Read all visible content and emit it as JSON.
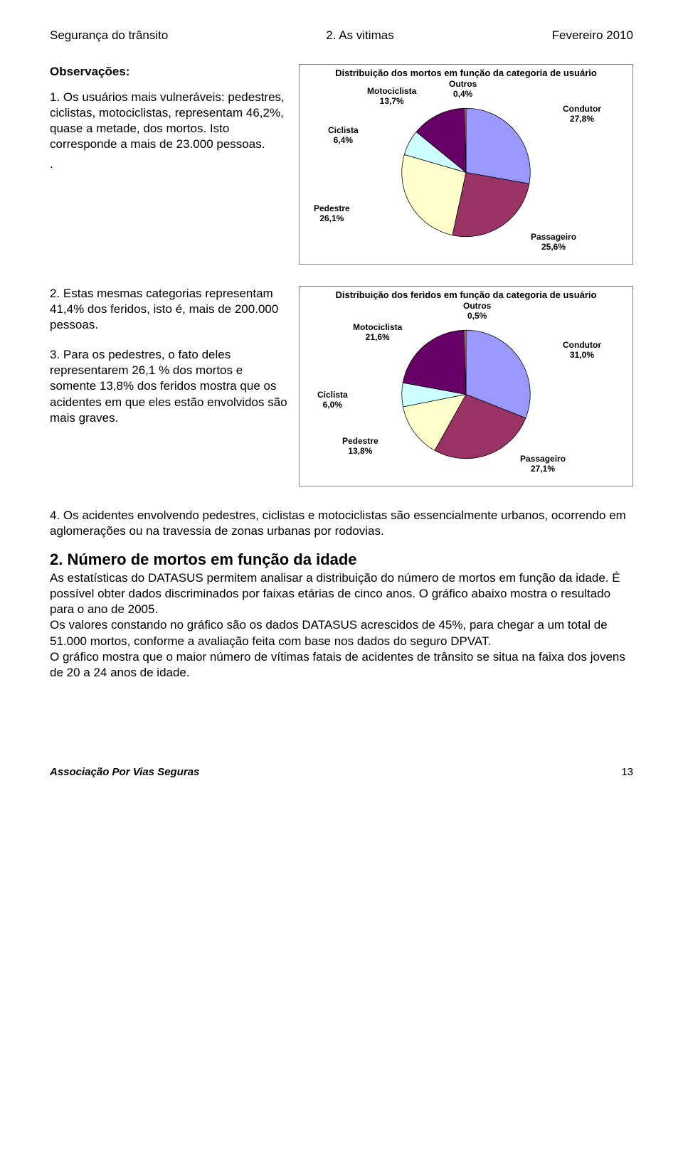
{
  "header": {
    "left": "Segurança do trânsito",
    "center": "2. As vitimas",
    "right": "Fevereiro 2010"
  },
  "obs_title": "Observações:",
  "obs1": "1. Os usuários mais vulneráveis: pedestres, ciclistas, motociclistas, representam 46,2%, quase a metade, dos mortos. Isto corresponde a mais de 23.000 pessoas.",
  "obs_dot": ".",
  "obs2": "2. Estas mesmas categorias representam 41,4% dos feridos, isto é, mais de 200.000 pessoas.",
  "obs3": "3. Para os pedestres, o fato deles representarem 26,1 % dos mortos e somente 13,8% dos feridos mostra que os acidentes em que eles estão envolvidos são mais graves.",
  "obs4": "4. Os acidentes envolvendo pedestres, ciclistas e motociclistas são essencialmente urbanos, ocorrendo em aglomerações ou na travessia de zonas urbanas por rodovias.",
  "section2_title": "2. Número de mortos em função da idade",
  "section2_body": "As estatísticas do DATASUS permitem analisar a distribuição do número de mortos em função da idade. É possível obter dados discriminados por faixas etárias de cinco anos. O gráfico abaixo mostra o resultado para o ano de 2005.\nOs valores constando no gráfico são os dados DATASUS acrescidos de 45%, para chegar a um total de 51.000 mortos, conforme a avaliação feita com base nos dados do seguro DPVAT.\nO gráfico mostra que o maior número de vítimas fatais de acidentes de trânsito se situa na faixa dos jovens de 20 a 24 anos de idade.",
  "chart1": {
    "type": "pie",
    "title": "Distribuição dos mortos em função da categoria de usuário",
    "background_color": "#ffffff",
    "border_color": "#808080",
    "slices": [
      {
        "label": "Condutor",
        "value": 27.8,
        "text": "Condutor\n27,8%",
        "color": "#9999ff"
      },
      {
        "label": "Passageiro",
        "value": 25.6,
        "text": "Passageiro\n25,6%",
        "color": "#993366"
      },
      {
        "label": "Pedestre",
        "value": 26.1,
        "text": "Pedestre\n26,1%",
        "color": "#ffffcc"
      },
      {
        "label": "Ciclista",
        "value": 6.4,
        "text": "Ciclista\n6,4%",
        "color": "#ccffff"
      },
      {
        "label": "Motociclista",
        "value": 13.7,
        "text": "Motociclista\n13,7%",
        "color": "#660066"
      },
      {
        "label": "Outros",
        "value": 0.4,
        "text": "Outros\n0,4%",
        "color": "#ff8080"
      }
    ],
    "label_fontsize": 12
  },
  "chart2": {
    "type": "pie",
    "title": "Distribuição dos feridos em função da categoria de usuário",
    "background_color": "#ffffff",
    "border_color": "#808080",
    "slices": [
      {
        "label": "Condutor",
        "value": 31.0,
        "text": "Condutor\n31,0%",
        "color": "#9999ff"
      },
      {
        "label": "Passageiro",
        "value": 27.1,
        "text": "Passageiro\n27,1%",
        "color": "#993366"
      },
      {
        "label": "Pedestre",
        "value": 13.8,
        "text": "Pedestre\n13,8%",
        "color": "#ffffcc"
      },
      {
        "label": "Ciclista",
        "value": 6.0,
        "text": "Ciclista\n6,0%",
        "color": "#ccffff"
      },
      {
        "label": "Motociclista",
        "value": 21.6,
        "text": "Motociclista\n21,6%",
        "color": "#660066"
      },
      {
        "label": "Outros",
        "value": 0.5,
        "text": "Outros\n0,5%",
        "color": "#ff8080"
      }
    ],
    "label_fontsize": 12
  },
  "footer": {
    "assoc": "Associação Por Vias Seguras",
    "page": "13"
  }
}
